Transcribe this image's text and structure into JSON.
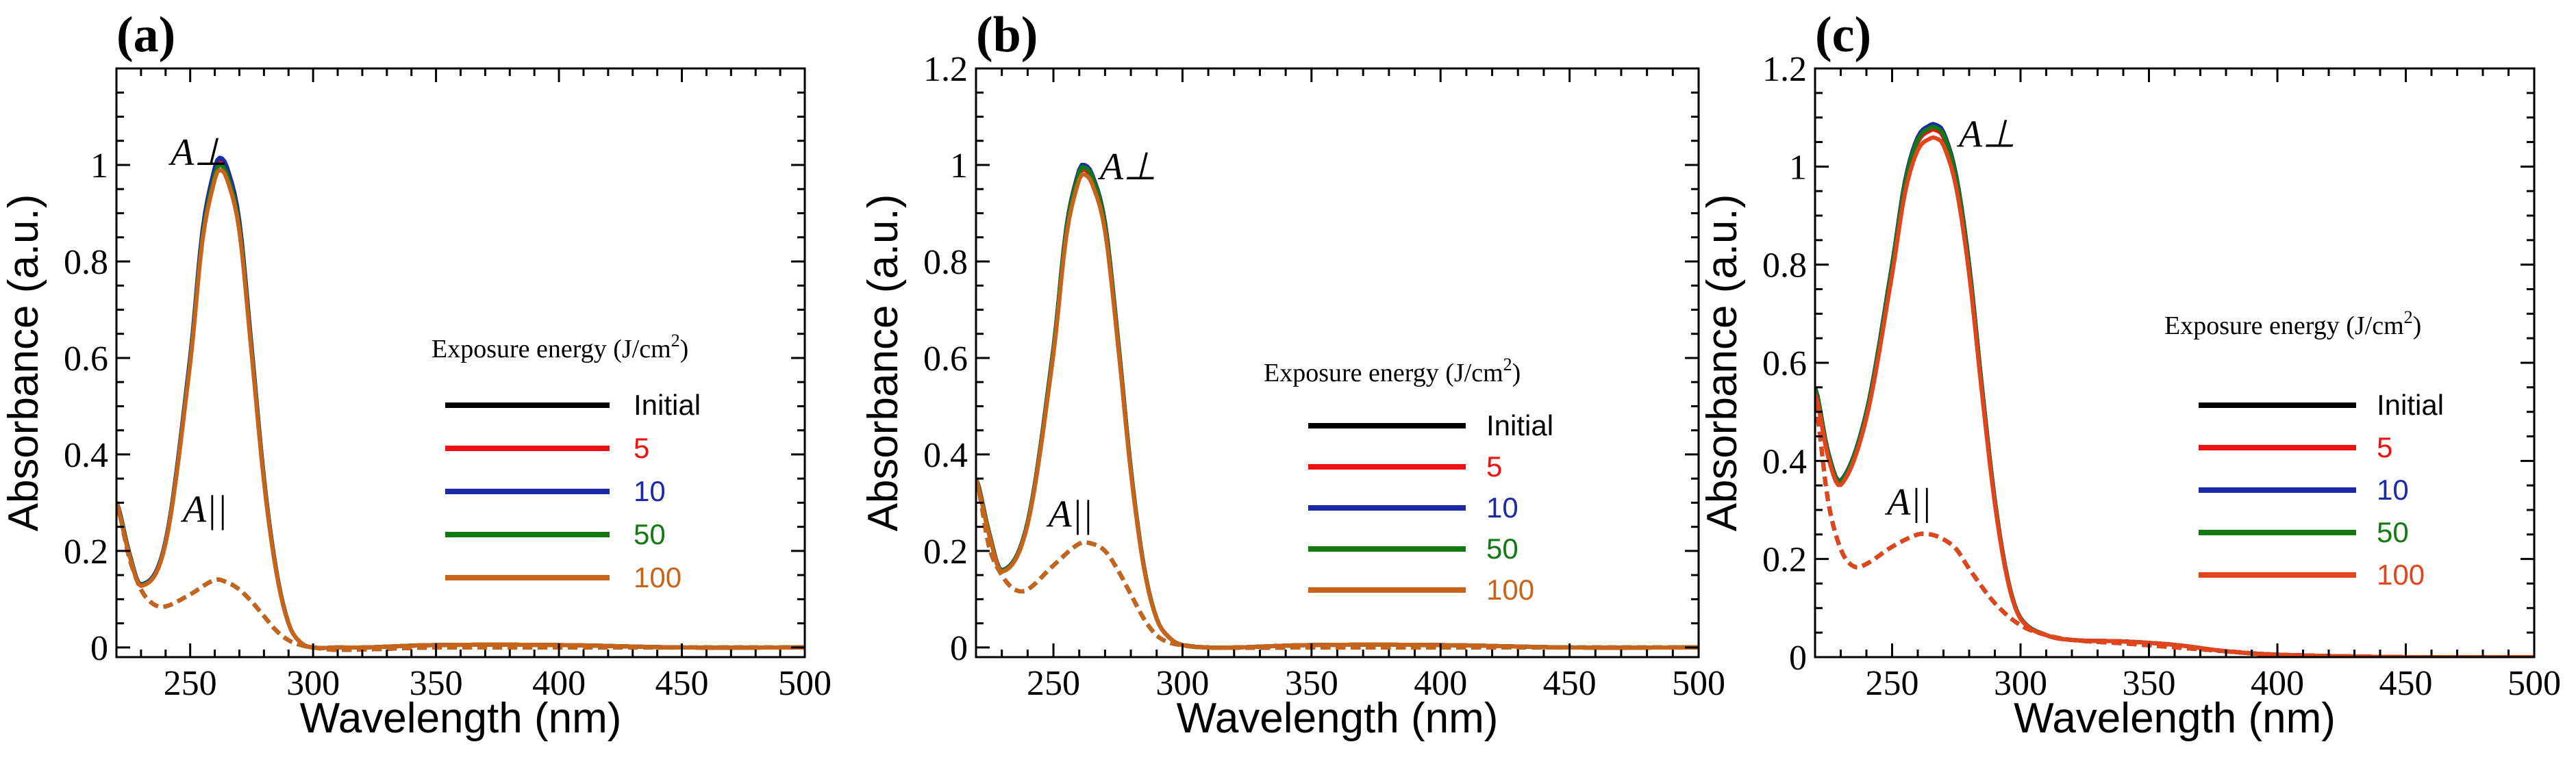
{
  "figure": {
    "description_none": "",
    "panels_count": 3
  },
  "chart_data": [
    {
      "type": "line",
      "panel_label": "(a)",
      "xlabel": "Wavelength (nm)",
      "ylabel": "Absorbance (a.u.)",
      "xlim": [
        220,
        500
      ],
      "ylim": [
        -0.02,
        1.2
      ],
      "xticks": [
        250,
        300,
        350,
        400,
        450,
        500
      ],
      "xtick_labels": [
        "250",
        "300",
        "350",
        "400",
        "450",
        "500"
      ],
      "yticks": [
        0,
        0.2,
        0.4,
        0.6,
        0.8,
        1
      ],
      "ytick_labels": [
        "0",
        "0.2",
        "0.4",
        "0.6",
        "0.8",
        "1"
      ],
      "legend_title": "Exposure energy (J/cm",
      "legend_title_sup": "2",
      "legend_title_end": ")",
      "legend_position": "center-right",
      "annotations": [
        {
          "text": "A⊥",
          "at": [
            242,
            1.0
          ]
        },
        {
          "text": "A||",
          "at": [
            247,
            0.26
          ]
        }
      ],
      "perp_anchor": {
        "x": [
          220,
          225,
          230,
          240,
          250,
          255,
          260,
          262,
          265,
          270,
          275,
          280,
          285,
          290,
          295,
          300,
          310,
          320,
          350,
          400,
          450,
          500
        ],
        "y": [
          0.3,
          0.2,
          0.13,
          0.22,
          0.6,
          0.86,
          0.99,
          1.01,
          0.99,
          0.88,
          0.62,
          0.35,
          0.16,
          0.05,
          0.01,
          0.0,
          0.0,
          0.0,
          0.005,
          0.005,
          0.0,
          0.0
        ]
      },
      "par_anchor": {
        "x": [
          220,
          225,
          230,
          235,
          240,
          250,
          260,
          265,
          270,
          275,
          280,
          285,
          290,
          295,
          300,
          310,
          350,
          400,
          450,
          500
        ],
        "y": [
          0.3,
          0.19,
          0.12,
          0.09,
          0.085,
          0.11,
          0.14,
          0.135,
          0.12,
          0.095,
          0.065,
          0.035,
          0.015,
          0.005,
          0.0,
          -0.005,
          0.0,
          0.0,
          0.0,
          0.0
        ]
      },
      "series": [
        {
          "name": "Initial",
          "color": "#000000",
          "perp_scale": 1.0,
          "par_scale": 1.0
        },
        {
          "name": "5",
          "color": "#ee1111",
          "perp_scale": 0.995,
          "par_scale": 1.0
        },
        {
          "name": "10",
          "color": "#1c2aa8",
          "perp_scale": 1.005,
          "par_scale": 1.0
        },
        {
          "name": "50",
          "color": "#137a13",
          "perp_scale": 0.99,
          "par_scale": 1.0
        },
        {
          "name": "100",
          "color": "#c8641a",
          "perp_scale": 0.98,
          "par_scale": 1.0
        }
      ]
    },
    {
      "type": "line",
      "panel_label": "(b)",
      "xlabel": "Wavelength (nm)",
      "ylabel": "Absorbance (a.u.)",
      "xlim": [
        220,
        500
      ],
      "ylim": [
        -0.02,
        1.2
      ],
      "xticks": [
        250,
        300,
        350,
        400,
        450,
        500
      ],
      "xtick_labels": [
        "250",
        "300",
        "350",
        "400",
        "450",
        "500"
      ],
      "yticks": [
        0,
        0.2,
        0.4,
        0.6,
        0.8,
        1,
        1.2
      ],
      "ytick_labels": [
        "0",
        "0.2",
        "0.4",
        "0.6",
        "0.8",
        "1",
        "1.2"
      ],
      "legend_title": "Exposure energy (J/cm",
      "legend_title_sup": "2",
      "legend_title_end": ")",
      "legend_position": "center-right",
      "annotations": [
        {
          "text": "A⊥",
          "at": [
            268,
            0.97
          ]
        },
        {
          "text": "A||",
          "at": [
            248,
            0.25
          ]
        }
      ],
      "perp_anchor": {
        "x": [
          220,
          225,
          230,
          240,
          250,
          255,
          260,
          262,
          265,
          270,
          275,
          280,
          285,
          290,
          295,
          300,
          310,
          320,
          350,
          400,
          450,
          500
        ],
        "y": [
          0.35,
          0.24,
          0.16,
          0.26,
          0.62,
          0.87,
          0.99,
          1.0,
          0.98,
          0.88,
          0.64,
          0.37,
          0.17,
          0.06,
          0.02,
          0.005,
          0.0,
          0.0,
          0.005,
          0.005,
          0.0,
          0.0
        ]
      },
      "par_anchor": {
        "x": [
          220,
          225,
          230,
          235,
          240,
          250,
          260,
          265,
          270,
          275,
          280,
          285,
          290,
          295,
          300,
          310,
          350,
          400,
          450,
          500
        ],
        "y": [
          0.35,
          0.21,
          0.15,
          0.12,
          0.12,
          0.17,
          0.215,
          0.215,
          0.2,
          0.16,
          0.11,
          0.06,
          0.025,
          0.01,
          0.005,
          0.0,
          0.0,
          0.0,
          0.0,
          0.0
        ]
      },
      "series": [
        {
          "name": "Initial",
          "color": "#000000",
          "perp_scale": 1.0,
          "par_scale": 1.0
        },
        {
          "name": "5",
          "color": "#ee1111",
          "perp_scale": 0.99,
          "par_scale": 1.0
        },
        {
          "name": "10",
          "color": "#1c2aa8",
          "perp_scale": 1.0,
          "par_scale": 1.0
        },
        {
          "name": "50",
          "color": "#137a13",
          "perp_scale": 0.995,
          "par_scale": 1.0
        },
        {
          "name": "100",
          "color": "#c8641a",
          "perp_scale": 0.98,
          "par_scale": 1.0
        }
      ]
    },
    {
      "type": "line",
      "panel_label": "(c)",
      "xlabel": "Wavelength (nm)",
      "ylabel": "Absorbance (a.u.)",
      "xlim": [
        220,
        500
      ],
      "ylim": [
        0,
        1.2
      ],
      "xticks": [
        250,
        300,
        350,
        400,
        450,
        500
      ],
      "xtick_labels": [
        "250",
        "300",
        "350",
        "400",
        "450",
        "500"
      ],
      "yticks": [
        0,
        0.2,
        0.4,
        0.6,
        0.8,
        1,
        1.2
      ],
      "ytick_labels": [
        "0",
        "0.2",
        "0.4",
        "0.6",
        "0.8",
        "1",
        "1.2"
      ],
      "legend_title": "Exposure energy (J/cm",
      "legend_title_sup": "2",
      "legend_title_end": ")",
      "legend_position": "center-right",
      "annotations": [
        {
          "text": "A⊥",
          "at": [
            276,
            1.04
          ]
        },
        {
          "text": "A||",
          "at": [
            248,
            0.29
          ]
        }
      ],
      "perp_anchor": {
        "x": [
          220,
          225,
          230,
          240,
          250,
          255,
          260,
          265,
          267,
          270,
          275,
          280,
          285,
          290,
          295,
          300,
          310,
          320,
          340,
          360,
          380,
          400,
          450,
          500
        ],
        "y": [
          0.55,
          0.42,
          0.36,
          0.5,
          0.8,
          0.97,
          1.06,
          1.085,
          1.085,
          1.07,
          0.98,
          0.8,
          0.55,
          0.32,
          0.16,
          0.08,
          0.045,
          0.035,
          0.032,
          0.025,
          0.012,
          0.005,
          0.0,
          0.0
        ]
      },
      "par_anchor": {
        "x": [
          220,
          225,
          230,
          235,
          240,
          250,
          260,
          265,
          270,
          275,
          280,
          290,
          300,
          310,
          320,
          340,
          360,
          380,
          400,
          450,
          500
        ],
        "y": [
          0.52,
          0.32,
          0.22,
          0.185,
          0.19,
          0.225,
          0.25,
          0.25,
          0.24,
          0.22,
          0.18,
          0.11,
          0.065,
          0.045,
          0.035,
          0.028,
          0.02,
          0.012,
          0.005,
          0.0,
          0.0
        ]
      },
      "series": [
        {
          "name": "Initial",
          "color": "#000000",
          "perp_scale": 1.0,
          "par_scale": 1.0
        },
        {
          "name": "5",
          "color": "#ee1111",
          "perp_scale": 0.99,
          "par_scale": 1.0
        },
        {
          "name": "10",
          "color": "#1c2aa8",
          "perp_scale": 1.0,
          "par_scale": 1.0
        },
        {
          "name": "50",
          "color": "#137a13",
          "perp_scale": 0.995,
          "par_scale": 1.0
        },
        {
          "name": "100",
          "color": "#e2451c",
          "perp_scale": 0.975,
          "par_scale": 1.0
        }
      ]
    }
  ]
}
